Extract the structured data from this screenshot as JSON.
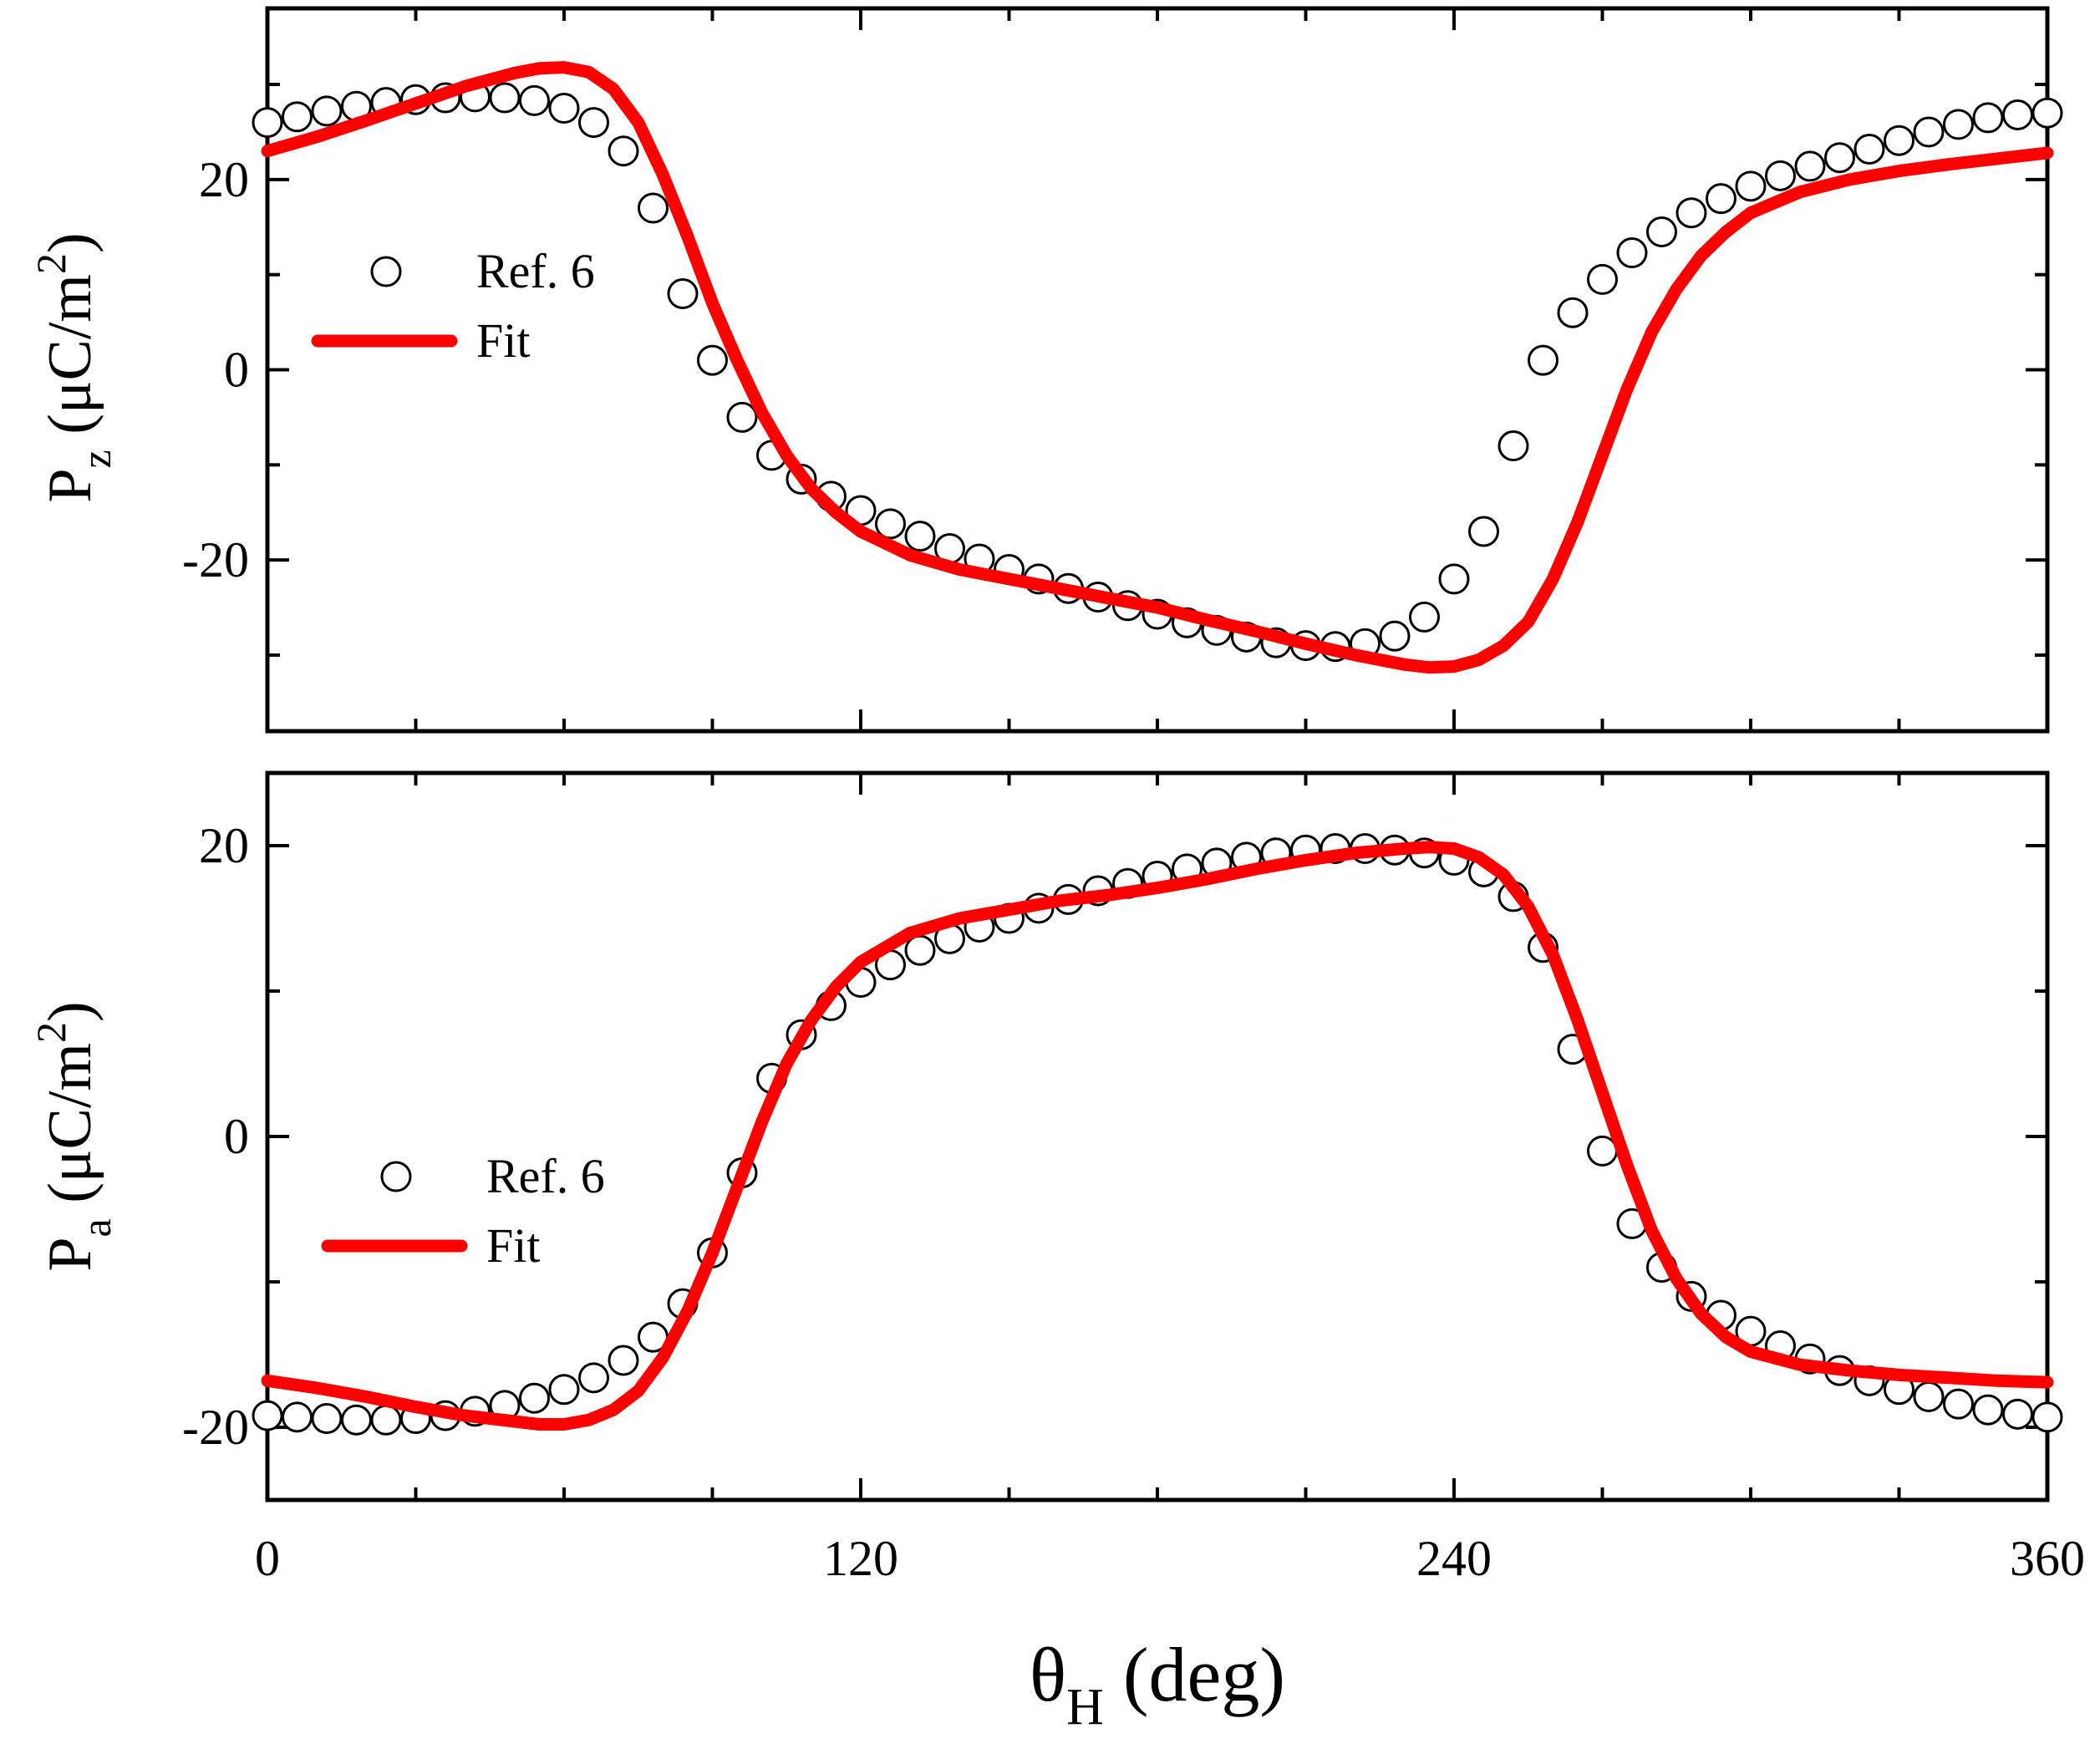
{
  "colors": {
    "fit": "#ff0000",
    "axis": "#000000",
    "marker_fill": "#ffffff"
  },
  "x_axis": {
    "label_main": "θ",
    "label_sub": "H",
    "label_unit": " (deg)",
    "range": [
      0,
      360
    ],
    "ticks": [
      0,
      120,
      240,
      360
    ],
    "tick_labels": [
      "0",
      "120",
      "240",
      "360"
    ],
    "minor_step": 30
  },
  "chart_data": [
    {
      "type": "scatter",
      "panel": "top",
      "ylabel_main": "P",
      "ylabel_sub": "z",
      "ylabel_unit_pre": " (μC/m",
      "ylabel_unit_sup": "2",
      "ylabel_unit_post": ")",
      "ylim": [
        -38,
        38
      ],
      "yticks": [
        20,
        0,
        -20
      ],
      "ytick_labels": [
        "20",
        "0",
        "-20"
      ],
      "y_minor_step": 10,
      "legend": {
        "position": "left",
        "entries": [
          "Ref. 6",
          "Fit"
        ]
      },
      "series": [
        {
          "name": "Ref. 6",
          "style": "open-circle",
          "x": [
            0,
            6,
            12,
            18,
            24,
            30,
            36,
            42,
            48,
            54,
            60,
            66,
            72,
            78,
            84,
            90,
            96,
            102,
            108,
            114,
            120,
            126,
            132,
            138,
            144,
            150,
            156,
            162,
            168,
            174,
            180,
            186,
            192,
            198,
            204,
            210,
            216,
            222,
            228,
            234,
            240,
            246,
            252,
            258,
            264,
            270,
            276,
            282,
            288,
            294,
            300,
            306,
            312,
            318,
            324,
            330,
            336,
            342,
            348,
            354,
            360
          ],
          "values": [
            26,
            26.6,
            27.2,
            27.7,
            28.1,
            28.4,
            28.6,
            28.7,
            28.6,
            28.3,
            27.5,
            26,
            23,
            17,
            8,
            1,
            -5,
            -9,
            -11.5,
            -13.3,
            -14.8,
            -16.2,
            -17.5,
            -18.8,
            -19.9,
            -21,
            -22,
            -23,
            -23.9,
            -24.8,
            -25.7,
            -26.6,
            -27.4,
            -28.1,
            -28.7,
            -29,
            -29.1,
            -28.8,
            -28,
            -26,
            -22,
            -17,
            -8,
            1,
            6,
            9.5,
            12.3,
            14.5,
            16.5,
            18,
            19.3,
            20.4,
            21.4,
            22.3,
            23.2,
            24.1,
            25,
            25.8,
            26.5,
            26.8,
            27
          ]
        },
        {
          "name": "Fit",
          "style": "line",
          "x": [
            0,
            10,
            20,
            30,
            40,
            50,
            55,
            60,
            65,
            70,
            75,
            80,
            85,
            90,
            95,
            100,
            105,
            110,
            115,
            120,
            130,
            140,
            150,
            160,
            170,
            180,
            190,
            200,
            210,
            220,
            230,
            235,
            240,
            245,
            250,
            255,
            260,
            265,
            270,
            275,
            280,
            285,
            290,
            295,
            300,
            310,
            320,
            330,
            340,
            350,
            360
          ],
          "values": [
            23,
            24.5,
            26.2,
            28,
            29.8,
            31.2,
            31.7,
            31.8,
            31.3,
            29.5,
            26,
            20.5,
            14,
            7,
            1,
            -4.5,
            -9,
            -12.5,
            -15,
            -17,
            -19.5,
            -21,
            -22,
            -23,
            -24,
            -25,
            -26.3,
            -27.5,
            -28.8,
            -30,
            -31,
            -31.3,
            -31.2,
            -30.5,
            -29,
            -26.5,
            -22,
            -16,
            -9,
            -2,
            4,
            8.5,
            12,
            14.5,
            16.5,
            18.7,
            20,
            20.9,
            21.6,
            22.2,
            22.8
          ]
        }
      ]
    },
    {
      "type": "scatter",
      "panel": "bottom",
      "ylabel_main": "P",
      "ylabel_sub": "a",
      "ylabel_unit_pre": " (μC/m",
      "ylabel_unit_sup": "2",
      "ylabel_unit_post": ")",
      "ylim": [
        -25,
        25
      ],
      "yticks": [
        20,
        0,
        -20
      ],
      "ytick_labels": [
        "20",
        "0",
        "-20"
      ],
      "y_minor_step": 10,
      "legend": {
        "position": "left",
        "entries": [
          "Ref. 6",
          "Fit"
        ]
      },
      "series": [
        {
          "name": "Ref. 6",
          "style": "open-circle",
          "x": [
            0,
            6,
            12,
            18,
            24,
            30,
            36,
            42,
            48,
            54,
            60,
            66,
            72,
            78,
            84,
            90,
            96,
            102,
            108,
            114,
            120,
            126,
            132,
            138,
            144,
            150,
            156,
            162,
            168,
            174,
            180,
            186,
            192,
            198,
            204,
            210,
            216,
            222,
            228,
            234,
            240,
            246,
            252,
            258,
            264,
            270,
            276,
            282,
            288,
            294,
            300,
            306,
            312,
            318,
            324,
            330,
            336,
            342,
            348,
            354,
            360
          ],
          "values": [
            -19.2,
            -19.3,
            -19.4,
            -19.5,
            -19.5,
            -19.4,
            -19.2,
            -18.9,
            -18.5,
            -18,
            -17.4,
            -16.6,
            -15.4,
            -13.8,
            -11.5,
            -8,
            -2.5,
            4,
            7,
            9,
            10.6,
            11.8,
            12.8,
            13.6,
            14.4,
            15,
            15.7,
            16.3,
            16.9,
            17.4,
            17.9,
            18.4,
            18.8,
            19.2,
            19.5,
            19.7,
            19.8,
            19.8,
            19.7,
            19.5,
            19,
            18.2,
            16.5,
            13,
            6,
            -1,
            -6,
            -9,
            -11,
            -12.3,
            -13.4,
            -14.4,
            -15.3,
            -16.1,
            -16.8,
            -17.4,
            -17.9,
            -18.4,
            -18.8,
            -19.1,
            -19.3
          ]
        },
        {
          "name": "Fit",
          "style": "line",
          "x": [
            0,
            10,
            20,
            30,
            40,
            50,
            55,
            60,
            65,
            70,
            75,
            80,
            85,
            90,
            95,
            100,
            105,
            110,
            115,
            120,
            130,
            140,
            150,
            160,
            170,
            180,
            190,
            200,
            210,
            220,
            230,
            235,
            240,
            245,
            250,
            255,
            260,
            265,
            270,
            275,
            280,
            285,
            290,
            295,
            300,
            310,
            320,
            330,
            340,
            350,
            360
          ],
          "values": [
            -16.8,
            -17.3,
            -17.9,
            -18.6,
            -19.2,
            -19.6,
            -19.8,
            -19.8,
            -19.5,
            -18.8,
            -17.5,
            -15.2,
            -12,
            -8,
            -3.5,
            1,
            5,
            8,
            10.3,
            12,
            14,
            15,
            15.6,
            16.2,
            16.6,
            17.1,
            17.7,
            18.4,
            19,
            19.5,
            19.8,
            19.9,
            19.8,
            19.2,
            18,
            15.8,
            12.5,
            8,
            3,
            -2,
            -6.5,
            -9.8,
            -12.2,
            -13.8,
            -14.8,
            -15.7,
            -16.1,
            -16.4,
            -16.6,
            -16.8,
            -16.9
          ]
        }
      ]
    }
  ]
}
